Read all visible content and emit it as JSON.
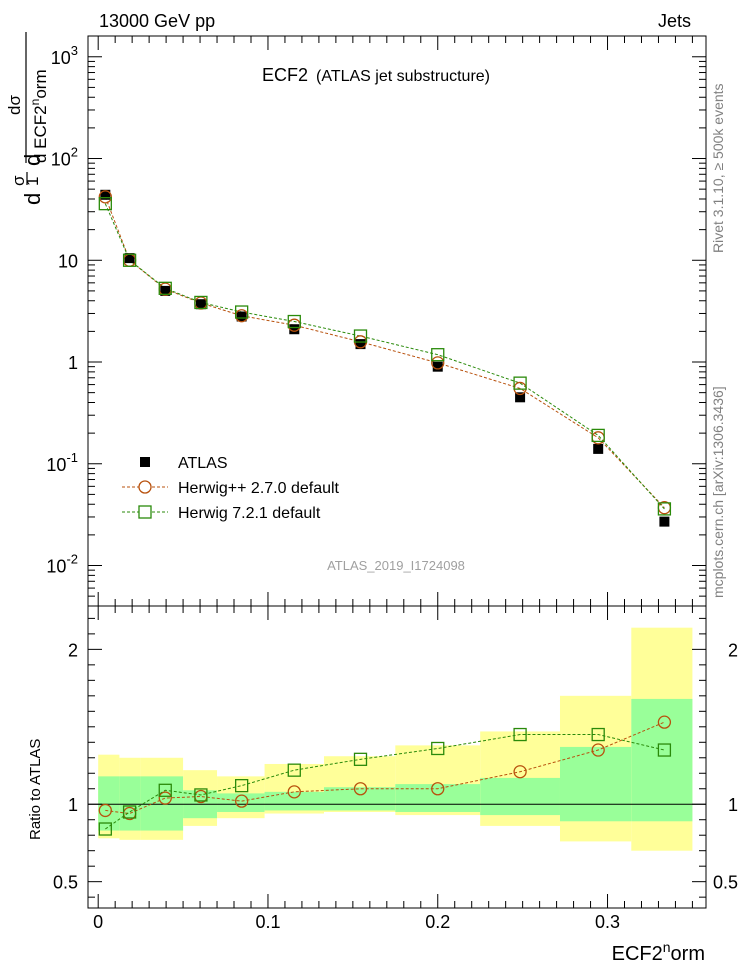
{
  "header": {
    "left": "13000 GeV pp",
    "right": "Jets"
  },
  "side_labels": {
    "rivet": "Rivet 3.1.10, ≥ 500k events",
    "mcplots": "mcplots.cern.ch [arXiv:1306.3436]"
  },
  "main_title": {
    "name": "ECF2",
    "subtitle": "(ATLAS jet substructure)"
  },
  "analysis_id": "ATLAS_2019_I1724098",
  "colors": {
    "data": "#000000",
    "herwigpp": "#b8510d",
    "herwig7": "#2a8a0a",
    "band_inner": "#99ff99",
    "band_outer": "#ffff99",
    "analysis_id": "#a0a0a0",
    "side_label": "#808080"
  },
  "chart_data": [
    {
      "type": "scatter",
      "name": "main-panel",
      "xlabel": "ECF2^norm",
      "ylabel": "dσ / d ECF2^norm  ×  1/σ",
      "yscale": "log",
      "xlim": [
        -0.006,
        0.358
      ],
      "ylim": [
        0.004,
        1600
      ],
      "y_ticks": [
        "10^-2",
        "10^-1",
        "1",
        "10",
        "10^2",
        "10^3"
      ],
      "legend": [
        "ATLAS",
        "Herwig++ 2.7.0 default",
        "Herwig 7.2.1 default"
      ],
      "legend_position": "bottom-left",
      "x": [
        0.0042,
        0.0185,
        0.0395,
        0.0605,
        0.0845,
        0.1155,
        0.1545,
        0.2,
        0.2485,
        0.2945,
        0.3335
      ],
      "bin_edges": [
        0.0,
        0.0125,
        0.025,
        0.05,
        0.07,
        0.098,
        0.133,
        0.175,
        0.225,
        0.272,
        0.314,
        0.35
      ],
      "series": [
        {
          "name": "ATLAS",
          "values": [
            44.0,
            10.5,
            5.0,
            3.7,
            2.8,
            2.1,
            1.5,
            0.9,
            0.45,
            0.14,
            0.027
          ]
        },
        {
          "name": "Herwig++ 2.7.0 default",
          "values": [
            42.0,
            10.0,
            5.2,
            3.8,
            2.85,
            2.3,
            1.58,
            0.98,
            0.55,
            0.18,
            0.037
          ]
        },
        {
          "name": "Herwig 7.2.1 default",
          "values": [
            36.0,
            10.0,
            5.3,
            3.85,
            3.1,
            2.5,
            1.8,
            1.18,
            0.62,
            0.19,
            0.036
          ]
        }
      ]
    },
    {
      "type": "scatter",
      "name": "ratio-panel",
      "xlabel": "ECF2^norm",
      "ylabel": "Ratio to ATLAS",
      "xlim": [
        -0.006,
        0.358
      ],
      "ylim": [
        0.33,
        2.28
      ],
      "y_ticks": [
        "0.5",
        "1",
        "2"
      ],
      "x_ticks": [
        "0",
        "0.1",
        "0.2",
        "0.3"
      ],
      "x": [
        0.0042,
        0.0185,
        0.0395,
        0.0605,
        0.0845,
        0.1155,
        0.1545,
        0.2,
        0.2485,
        0.2945,
        0.3335
      ],
      "bin_edges": [
        0.0,
        0.0125,
        0.025,
        0.05,
        0.07,
        0.098,
        0.133,
        0.175,
        0.225,
        0.272,
        0.314,
        0.35
      ],
      "band_inner_lo": [
        0.83,
        0.83,
        0.83,
        0.91,
        0.95,
        0.96,
        0.96,
        0.95,
        0.93,
        0.89,
        0.89
      ],
      "band_inner_hi": [
        1.18,
        1.18,
        1.18,
        1.09,
        1.07,
        1.08,
        1.11,
        1.13,
        1.17,
        1.37,
        1.68
      ],
      "band_outer_lo": [
        0.78,
        0.77,
        0.77,
        0.86,
        0.91,
        0.94,
        0.95,
        0.93,
        0.86,
        0.76,
        0.7
      ],
      "band_outer_hi": [
        1.32,
        1.3,
        1.3,
        1.22,
        1.18,
        1.26,
        1.31,
        1.38,
        1.47,
        1.7,
        2.14
      ],
      "series": [
        {
          "name": "Herwig++ 2.7.0 default",
          "values": [
            0.96,
            0.94,
            1.04,
            1.05,
            1.02,
            1.08,
            1.1,
            1.1,
            1.21,
            1.35,
            1.53
          ]
        },
        {
          "name": "Herwig 7.2.1 default",
          "values": [
            0.84,
            0.95,
            1.09,
            1.06,
            1.12,
            1.22,
            1.29,
            1.36,
            1.45,
            1.45,
            1.35
          ]
        }
      ]
    }
  ]
}
